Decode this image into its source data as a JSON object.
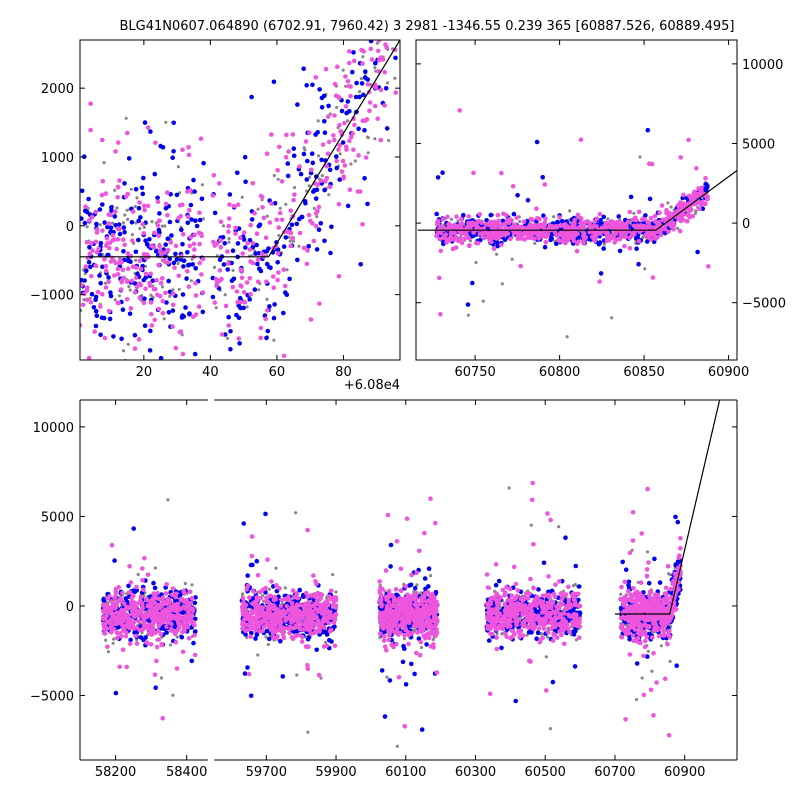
{
  "title": "BLG41N0607.064890 (6702.91, 7960.42)  3 2981 -1346.55 0.239 365 [60887.526, 60889.495]",
  "colors": {
    "blue": "#0000ee",
    "pink": "#ee55dd",
    "gray": "#888888",
    "model": "#000000"
  },
  "chart_data": [
    {
      "type": "scatter",
      "name": "zoom-recent",
      "xlim": [
        0.8,
        97
      ],
      "ylim": [
        -1950,
        2700
      ],
      "x_offset_label": "+6.08e4",
      "xticks": [
        20,
        40,
        60,
        80
      ],
      "yticks": [
        -1000,
        0,
        1000,
        2000
      ],
      "model_line": [
        [
          0.8,
          -450
        ],
        [
          57.5,
          -450
        ],
        [
          97,
          2700
        ]
      ],
      "series": [
        {
          "color": "blue"
        },
        {
          "color": "pink"
        },
        {
          "color": "gray"
        }
      ]
    },
    {
      "type": "scatter",
      "name": "season-last",
      "xlim": [
        60715,
        60905
      ],
      "ylim": [
        -8600,
        11500
      ],
      "xticks": [
        60750,
        60800,
        60850,
        60900
      ],
      "yticks": [
        -5000,
        0,
        5000,
        10000
      ],
      "y_axis_side": "right",
      "model_line": [
        [
          60716,
          -450
        ],
        [
          60857,
          -450
        ],
        [
          60905,
          3300
        ]
      ],
      "series": [
        {
          "color": "blue"
        },
        {
          "color": "pink"
        },
        {
          "color": "gray"
        }
      ]
    },
    {
      "type": "scatter",
      "name": "all-seasons",
      "ylim": [
        -8600,
        11500
      ],
      "yticks": [
        -5000,
        0,
        5000,
        10000
      ],
      "x_axis_break": true,
      "segments": [
        {
          "xlim": [
            58100,
            58460
          ],
          "xticks": [
            58200,
            58400
          ]
        },
        {
          "xlim": [
            59550,
            61050
          ],
          "xticks": [
            59700,
            59900,
            60100,
            60300,
            60500,
            60700,
            60900
          ]
        }
      ],
      "seasons": [
        [
          58165,
          58425
        ],
        [
          59630,
          59900
        ],
        [
          60025,
          60190
        ],
        [
          60330,
          60600
        ],
        [
          60716,
          60888
        ]
      ],
      "model_line": [
        [
          60700,
          -450
        ],
        [
          60857,
          -450
        ],
        [
          61000,
          11500
        ]
      ],
      "series": [
        {
          "color": "blue"
        },
        {
          "color": "pink"
        },
        {
          "color": "gray"
        }
      ]
    }
  ]
}
